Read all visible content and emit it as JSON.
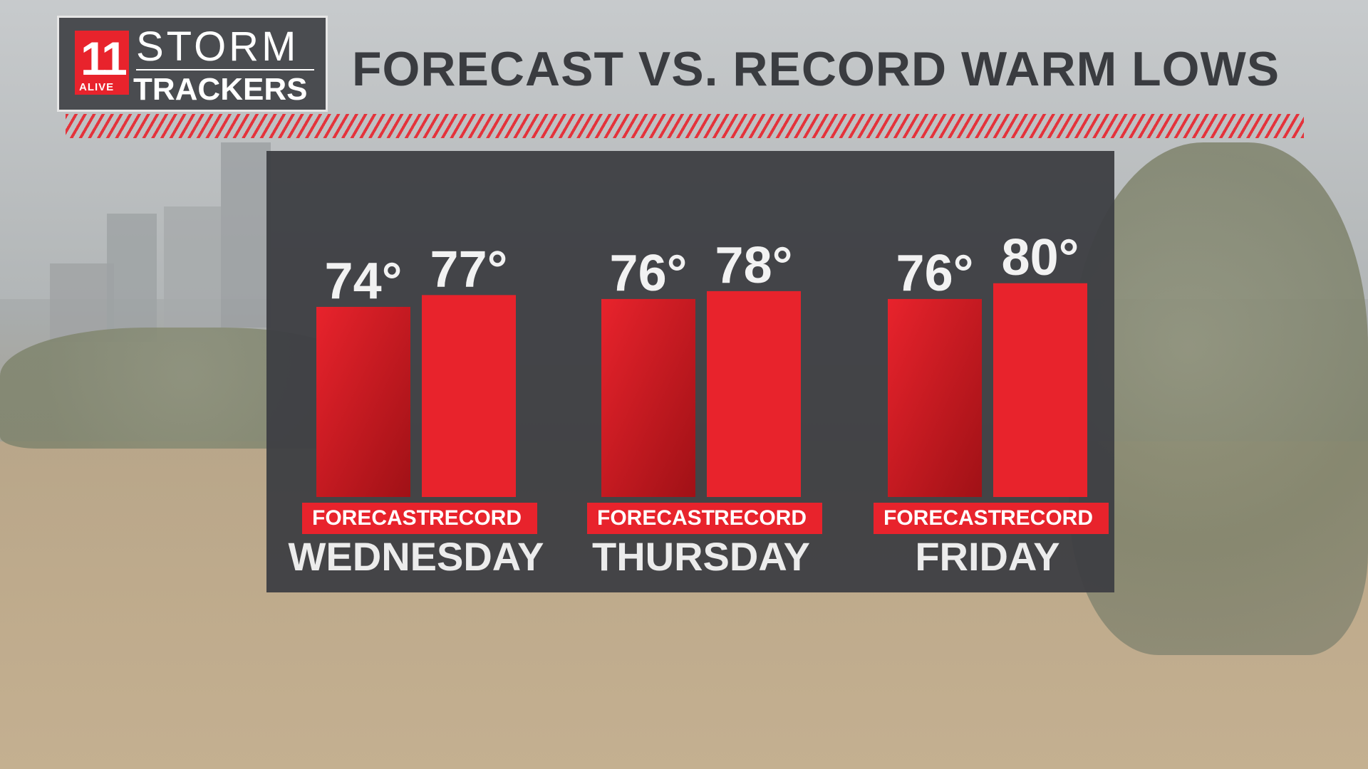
{
  "header": {
    "logo": {
      "number": "11",
      "alive": "ALIVE",
      "storm": "STORM",
      "trackers": "TRACKERS"
    },
    "title": "FORECAST VS. RECORD WARM LOWS"
  },
  "colors": {
    "forecast_bar": "#b71419",
    "record_bar": "#e8232c",
    "panel": "#3e4044",
    "label_text": "#ececec"
  },
  "chart_data": {
    "type": "bar",
    "title": "FORECAST VS. RECORD WARM LOWS",
    "categories": [
      "WEDNESDAY",
      "THURSDAY",
      "FRIDAY"
    ],
    "series": [
      {
        "name": "FORECAST",
        "values": [
          74,
          76,
          76
        ],
        "labels": [
          "74°",
          "76°",
          "76°"
        ]
      },
      {
        "name": "RECORD",
        "values": [
          77,
          78,
          80
        ],
        "labels": [
          "77°",
          "78°",
          "80°"
        ]
      }
    ],
    "ylim": [
      0,
      80
    ],
    "grid": false,
    "legend": "below each group"
  }
}
